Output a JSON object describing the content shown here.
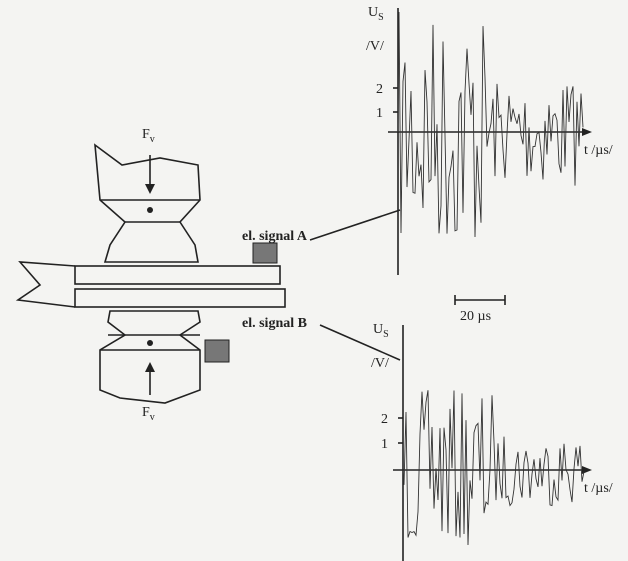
{
  "figure": {
    "force_top": {
      "label": "F",
      "sub": "v"
    },
    "force_bottom": {
      "label": "F",
      "sub": "v"
    },
    "signal_a_label": "el. signal A",
    "signal_b_label": "el. signal B",
    "scale_bar": "20 µs",
    "plot_a": {
      "y_label": "U",
      "y_sub": "S",
      "y_unit": "/V/",
      "ticks": [
        "2",
        "1"
      ],
      "x_label": "t /µs/"
    },
    "plot_b": {
      "y_label": "U",
      "y_sub": "S",
      "y_unit": "/V/",
      "ticks": [
        "2",
        "1"
      ],
      "x_label": "t /µs/"
    }
  }
}
